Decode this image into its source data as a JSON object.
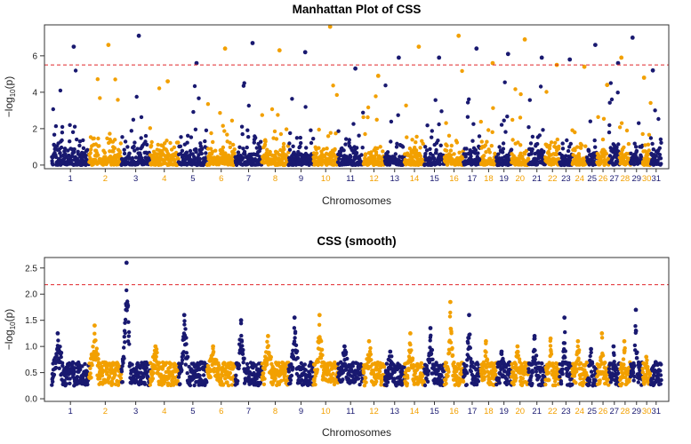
{
  "figure": "Manhattan plots of CSS",
  "palette": {
    "odd": "#191970",
    "even": "#f2a000",
    "threshold": "#e0262a",
    "axis": "#333333"
  },
  "chart_data": [
    {
      "type": "scatter",
      "title": "Manhattan Plot of CSS",
      "xlabel": "Chromosomes",
      "ylabel": "−log10(p)",
      "ylim": [
        -0.2,
        7.7
      ],
      "yticks": [
        0,
        2,
        4,
        6
      ],
      "threshold": 5.5,
      "chromosomes": [
        "1",
        "2",
        "3",
        "4",
        "5",
        "6",
        "7",
        "8",
        "9",
        "10",
        "11",
        "12",
        "13",
        "14",
        "15",
        "16",
        "17",
        "18",
        "19",
        "20",
        "21",
        "22",
        "23",
        "24",
        "25",
        "26",
        "27",
        "28",
        "29",
        "30",
        "31"
      ],
      "chrom_sizes": [
        158,
        137,
        121,
        121,
        121,
        119,
        113,
        113,
        105,
        104,
        107,
        91,
        84,
        84,
        85,
        81,
        73,
        66,
        64,
        72,
        71,
        61,
        53,
        63,
        42,
        51,
        45,
        46,
        51,
        35,
        45
      ],
      "peaks": [
        6.5,
        6.6,
        7.1,
        4.6,
        5.6,
        6.4,
        6.7,
        6.3,
        6.2,
        7.6,
        5.3,
        4.9,
        5.9,
        6.5,
        5.9,
        7.1,
        6.4,
        5.6,
        6.1,
        6.9,
        5.9,
        5.5,
        5.8,
        5.4,
        6.6,
        4.4,
        5.6,
        5.9,
        7.0,
        4.8,
        5.2
      ]
    },
    {
      "type": "scatter",
      "title": "CSS (smooth)",
      "xlabel": "Chromosomes",
      "ylabel": "−log10(p)",
      "ylim": [
        -0.05,
        2.7
      ],
      "yticks": [
        0.0,
        0.5,
        1.0,
        1.5,
        2.0,
        2.5
      ],
      "threshold": 2.18,
      "chromosomes": [
        "1",
        "2",
        "3",
        "4",
        "5",
        "6",
        "7",
        "8",
        "9",
        "10",
        "11",
        "12",
        "13",
        "14",
        "15",
        "16",
        "17",
        "18",
        "19",
        "20",
        "21",
        "22",
        "23",
        "24",
        "25",
        "26",
        "27",
        "28",
        "29",
        "30",
        "31"
      ],
      "chrom_sizes": [
        158,
        137,
        121,
        121,
        121,
        119,
        113,
        113,
        105,
        104,
        107,
        91,
        84,
        84,
        85,
        81,
        73,
        66,
        64,
        72,
        71,
        61,
        53,
        63,
        42,
        51,
        45,
        46,
        51,
        35,
        45
      ],
      "peaks": [
        1.25,
        1.4,
        2.6,
        1.0,
        1.6,
        1.0,
        1.5,
        1.2,
        1.55,
        1.6,
        1.0,
        1.1,
        0.9,
        1.25,
        1.35,
        1.85,
        1.6,
        1.1,
        0.9,
        1.0,
        1.2,
        1.15,
        1.55,
        1.1,
        0.95,
        1.25,
        1.0,
        1.1,
        1.7,
        0.8,
        0.7
      ]
    }
  ]
}
